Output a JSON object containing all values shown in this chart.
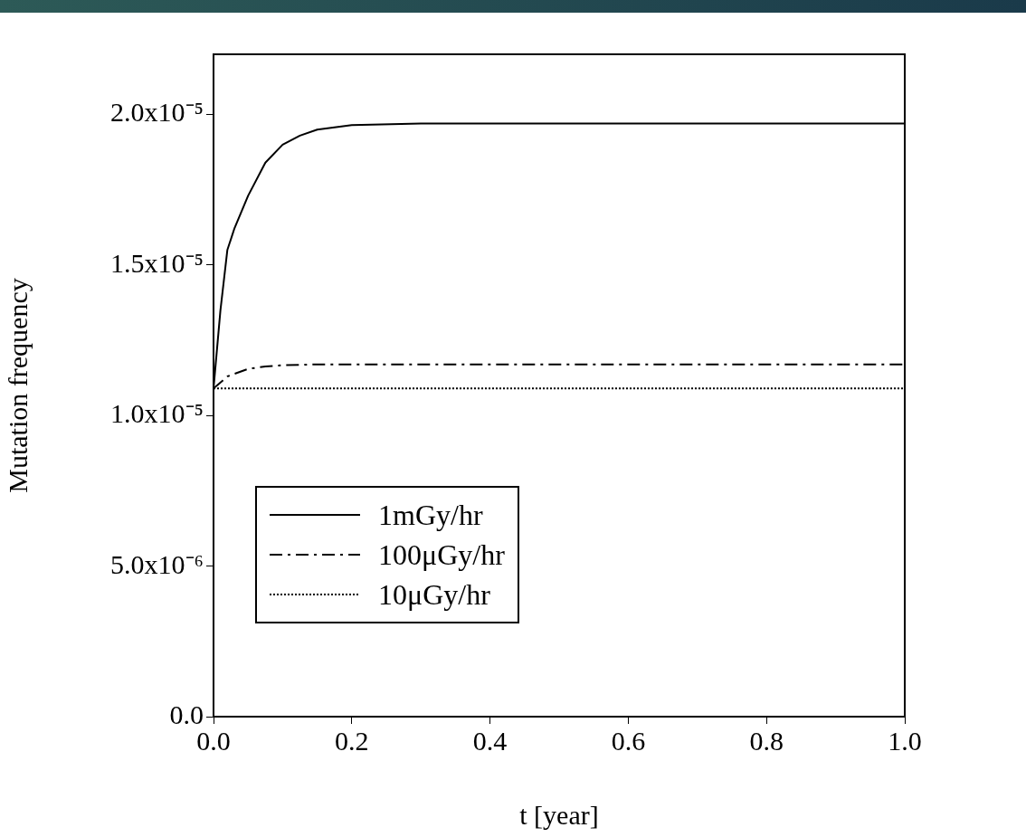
{
  "chart_data": {
    "type": "line",
    "xlabel": "t [year]",
    "ylabel": "Mutation frequency",
    "xlim": [
      0,
      1
    ],
    "xticks": [
      {
        "value": 0,
        "label": "0.0"
      },
      {
        "value": 0.2,
        "label": "0.2"
      },
      {
        "value": 0.4,
        "label": "0.4"
      },
      {
        "value": 0.6,
        "label": "0.6"
      },
      {
        "value": 0.8,
        "label": "0.8"
      },
      {
        "value": 1,
        "label": "1.0"
      }
    ],
    "ylim": [
      0,
      2.2e-05
    ],
    "yticks": [
      {
        "value": 0,
        "label": "0.0"
      },
      {
        "value": 5e-06,
        "label": "5.0x10⁻⁶"
      },
      {
        "value": 1e-05,
        "label": "1.0x10⁻⁵"
      },
      {
        "value": 1.5e-05,
        "label": "1.5x10⁻⁵"
      },
      {
        "value": 2e-05,
        "label": "2.0x10⁻⁵"
      }
    ],
    "grid": false,
    "legend": "bottom left",
    "marker": "none",
    "series": [
      {
        "name": "1mGy/hr",
        "color": "#000000",
        "line_style": "solid",
        "x": [
          0,
          0.01,
          0.02,
          0.03,
          0.05,
          0.075,
          0.1,
          0.125,
          0.15,
          0.2,
          0.3,
          0.5,
          1.0
        ],
        "values": [
          1.09e-05,
          1.35e-05,
          1.55e-05,
          1.62e-05,
          1.73e-05,
          1.84e-05,
          1.9e-05,
          1.93e-05,
          1.95e-05,
          1.965e-05,
          1.97e-05,
          1.97e-05,
          1.97e-05
        ]
      },
      {
        "name": "100μGy/hr",
        "color": "#000000",
        "line_style": "dashed",
        "x": [
          0,
          0.02,
          0.05,
          0.075,
          0.1,
          0.15,
          0.2,
          0.5,
          1.0
        ],
        "values": [
          1.09e-05,
          1.13e-05,
          1.155e-05,
          1.163e-05,
          1.167e-05,
          1.17e-05,
          1.17e-05,
          1.17e-05,
          1.17e-05
        ]
      },
      {
        "name": "10μGy/hr",
        "color": "#000000",
        "line_style": "dotted",
        "x": [
          0,
          1.0
        ],
        "values": [
          1.09e-05,
          1.09e-05
        ]
      }
    ]
  }
}
